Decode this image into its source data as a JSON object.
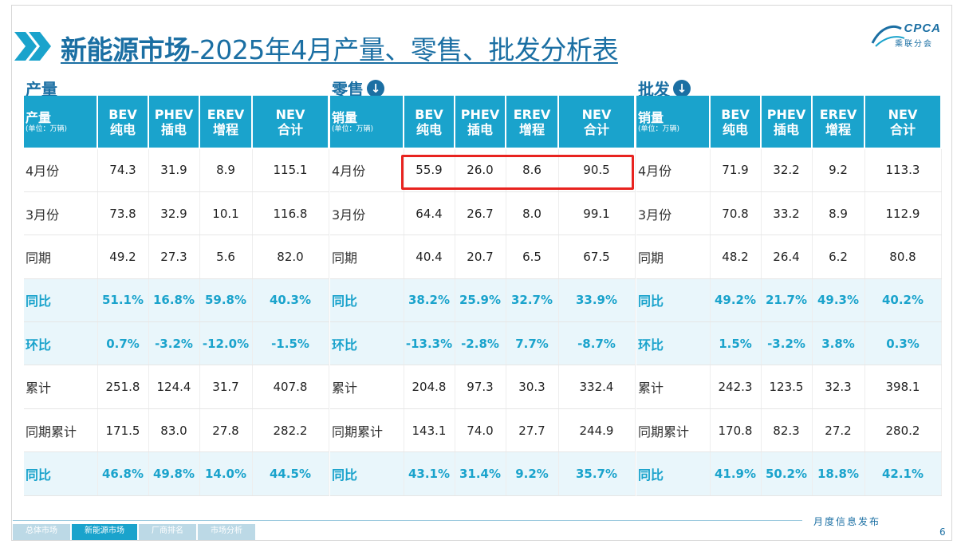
{
  "header": {
    "title_bold": "新能源市场",
    "title_rest": "-2025年4月产量、零售、批发分析表",
    "logo_text": "CPCA",
    "logo_sub": "乘联分会"
  },
  "unit_label": "(单位：万辆)",
  "columns": [
    {
      "abbr": "BEV",
      "cn": "纯电"
    },
    {
      "abbr": "PHEV",
      "cn": "插电"
    },
    {
      "abbr": "EREV",
      "cn": "增程"
    },
    {
      "abbr": "NEV",
      "cn": "合计"
    }
  ],
  "sections": {
    "production": {
      "title": "产量",
      "lead": "产量",
      "rows": [
        {
          "label": "4月份",
          "values": [
            "74.3",
            "31.9",
            "8.9",
            "115.1"
          ]
        },
        {
          "label": "3月份",
          "values": [
            "73.8",
            "32.9",
            "10.1",
            "116.8"
          ]
        },
        {
          "label": "同期",
          "values": [
            "49.2",
            "27.3",
            "5.6",
            "82.0"
          ]
        },
        {
          "label": "同比",
          "values": [
            "51.1%",
            "16.8%",
            "59.8%",
            "40.3%"
          ]
        },
        {
          "label": "环比",
          "values": [
            "0.7%",
            "-3.2%",
            "-12.0%",
            "-1.5%"
          ]
        },
        {
          "label": "累计",
          "values": [
            "251.8",
            "124.4",
            "31.7",
            "407.8"
          ]
        },
        {
          "label": "同期累计",
          "values": [
            "171.5",
            "83.0",
            "27.8",
            "282.2"
          ]
        },
        {
          "label": "同比",
          "values": [
            "46.8%",
            "49.8%",
            "14.0%",
            "44.5%"
          ]
        }
      ]
    },
    "retail": {
      "title": "零售",
      "lead": "销量",
      "rows": [
        {
          "label": "4月份",
          "values": [
            "55.9",
            "26.0",
            "8.6",
            "90.5"
          ]
        },
        {
          "label": "3月份",
          "values": [
            "64.4",
            "26.7",
            "8.0",
            "99.1"
          ]
        },
        {
          "label": "同期",
          "values": [
            "40.4",
            "20.7",
            "6.5",
            "67.5"
          ]
        },
        {
          "label": "同比",
          "values": [
            "38.2%",
            "25.9%",
            "32.7%",
            "33.9%"
          ]
        },
        {
          "label": "环比",
          "values": [
            "-13.3%",
            "-2.8%",
            "7.7%",
            "-8.7%"
          ]
        },
        {
          "label": "累计",
          "values": [
            "204.8",
            "97.3",
            "30.3",
            "332.4"
          ]
        },
        {
          "label": "同期累计",
          "values": [
            "143.1",
            "74.0",
            "27.7",
            "244.9"
          ]
        },
        {
          "label": "同比",
          "values": [
            "43.1%",
            "31.4%",
            "9.2%",
            "35.7%"
          ]
        }
      ]
    },
    "wholesale": {
      "title": "批发",
      "lead": "销量",
      "rows": [
        {
          "label": "4月份",
          "values": [
            "71.9",
            "32.2",
            "9.2",
            "113.3"
          ]
        },
        {
          "label": "3月份",
          "values": [
            "70.8",
            "33.2",
            "8.9",
            "112.9"
          ]
        },
        {
          "label": "同期",
          "values": [
            "48.2",
            "26.4",
            "6.2",
            "80.8"
          ]
        },
        {
          "label": "同比",
          "values": [
            "49.2%",
            "21.7%",
            "49.3%",
            "40.2%"
          ]
        },
        {
          "label": "环比",
          "values": [
            "1.5%",
            "-3.2%",
            "3.8%",
            "0.3%"
          ]
        },
        {
          "label": "累计",
          "values": [
            "242.3",
            "123.5",
            "32.3",
            "398.1"
          ]
        },
        {
          "label": "同期累计",
          "values": [
            "170.8",
            "82.3",
            "27.2",
            "280.2"
          ]
        },
        {
          "label": "同比",
          "values": [
            "41.9%",
            "50.2%",
            "18.8%",
            "42.1%"
          ]
        }
      ]
    }
  },
  "highlight_rows": [
    3,
    4,
    7
  ],
  "footer": {
    "tabs": [
      "总体市场",
      "新能源市场",
      "厂商排名",
      "市场分析"
    ],
    "active_tab": 1,
    "monthly_label": "月度信息发布",
    "page": "6"
  }
}
